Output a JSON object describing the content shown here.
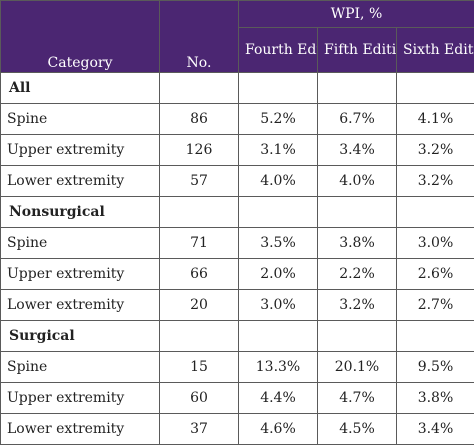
{
  "table": {
    "header": {
      "category": "Category",
      "number": "No.",
      "wpi": "WPI, %",
      "editions": [
        "Fourth Edition",
        "Fifth Edition",
        "Sixth Edition"
      ]
    },
    "groups": [
      {
        "name": "All",
        "rows": [
          {
            "category": "Spine",
            "number": "86",
            "fourth": "5.2%",
            "fifth": "6.7%",
            "sixth": "4.1%"
          },
          {
            "category": "Upper extremity",
            "number": "126",
            "fourth": "3.1%",
            "fifth": "3.4%",
            "sixth": "3.2%"
          },
          {
            "category": "Lower extremity",
            "number": "57",
            "fourth": "4.0%",
            "fifth": "4.0%",
            "sixth": "3.2%"
          }
        ]
      },
      {
        "name": "Nonsurgical",
        "rows": [
          {
            "category": "Spine",
            "number": "71",
            "fourth": "3.5%",
            "fifth": "3.8%",
            "sixth": "3.0%"
          },
          {
            "category": "Upper extremity",
            "number": "66",
            "fourth": "2.0%",
            "fifth": "2.2%",
            "sixth": "2.6%"
          },
          {
            "category": "Lower extremity",
            "number": "20",
            "fourth": "3.0%",
            "fifth": "3.2%",
            "sixth": "2.7%"
          }
        ]
      },
      {
        "name": "Surgical",
        "rows": [
          {
            "category": "Spine",
            "number": "15",
            "fourth": "13.3%",
            "fifth": "20.1%",
            "sixth": "9.5%"
          },
          {
            "category": "Upper extremity",
            "number": "60",
            "fourth": "4.4%",
            "fifth": "4.7%",
            "sixth": "3.8%"
          },
          {
            "category": "Lower extremity",
            "number": "37",
            "fourth": "4.6%",
            "fifth": "4.5%",
            "sixth": "3.4%"
          }
        ]
      }
    ]
  },
  "colors": {
    "header_background": "#4b2672",
    "header_text": "#ffffff"
  }
}
